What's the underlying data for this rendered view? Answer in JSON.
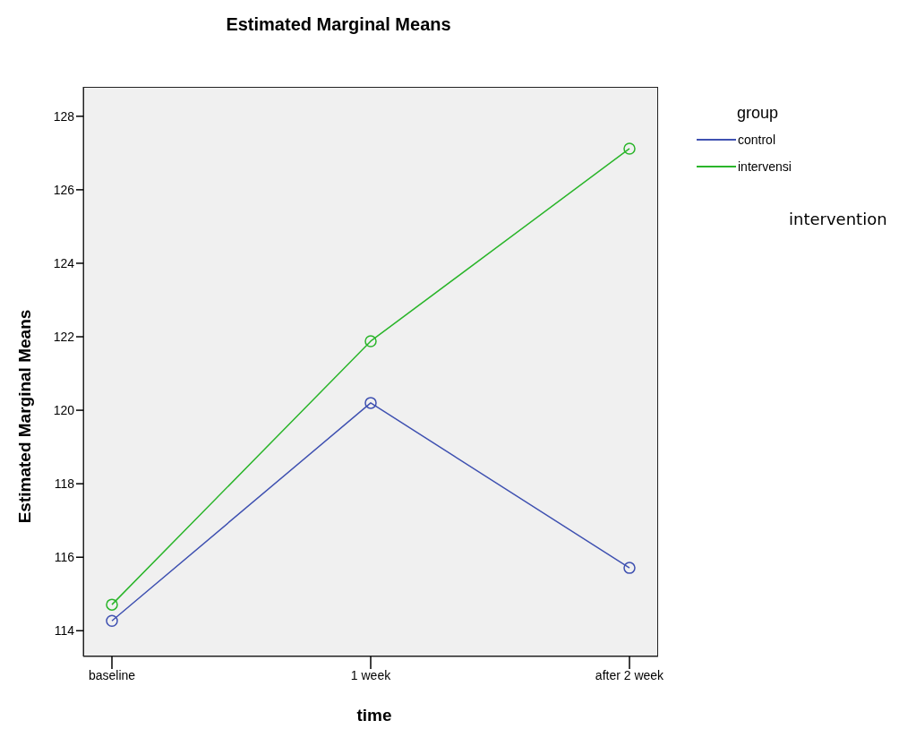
{
  "chart_data": {
    "type": "line",
    "title": "Estimated Marginal Means",
    "xlabel": "time",
    "ylabel": "Estimated Marginal Means",
    "legend_title": "group",
    "categories": [
      "baseline",
      "1 week",
      "after 2 week"
    ],
    "series": [
      {
        "name": "control",
        "color": "#3f51b1",
        "values": [
          114.27,
          120.2,
          115.71
        ]
      },
      {
        "name": "intervensi",
        "color": "#2ab52a",
        "values": [
          114.71,
          121.88,
          127.12
        ]
      }
    ],
    "ylim": [
      113.3,
      128.8
    ],
    "yticks": [
      114,
      116,
      118,
      120,
      122,
      124,
      126,
      128
    ],
    "grid": false,
    "legend": "right",
    "marker": "circle",
    "line_style": "solid",
    "annotations": [
      "intervention"
    ]
  }
}
